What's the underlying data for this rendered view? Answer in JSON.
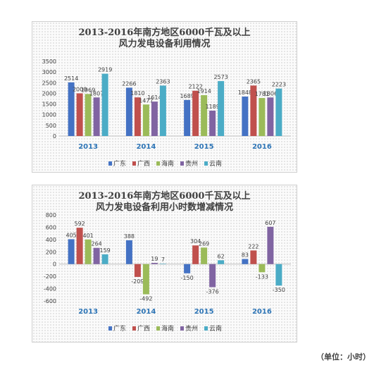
{
  "chart_data": [
    {
      "type": "bar",
      "title": "2013-2016年南方地区6000千瓦及以上",
      "subtitle": "风力发电设备利用情况",
      "categories": [
        "2013",
        "2014",
        "2015",
        "2016"
      ],
      "series": [
        {
          "name": "广东",
          "color": "#4472c4",
          "values": [
            2514,
            2266,
            1689,
            1848
          ]
        },
        {
          "name": "广西",
          "color": "#c0504d",
          "values": [
            2000,
            1810,
            2122,
            2365
          ]
        },
        {
          "name": "海南",
          "color": "#9bbb59",
          "values": [
            1969,
            1477,
            1914,
            1781
          ]
        },
        {
          "name": "贵州",
          "color": "#8064a2",
          "values": [
            1807,
            1614,
            1189,
            1806
          ]
        },
        {
          "name": "云南",
          "color": "#4bacc6",
          "values": [
            2919,
            2363,
            2573,
            2223
          ]
        }
      ],
      "ylim": [
        0,
        3500
      ],
      "yticks": [
        "0",
        "500",
        "1000",
        "1500",
        "2000",
        "2500",
        "3000",
        "3500"
      ],
      "legend": "bottom"
    },
    {
      "type": "bar",
      "title": "2013-2016年南方地区6000千瓦及以上",
      "subtitle": "风力发电设备利用小时数增减情况",
      "categories": [
        "2013",
        "2014",
        "2015",
        "2016"
      ],
      "series": [
        {
          "name": "广东",
          "color": "#4472c4",
          "values": [
            405,
            388,
            -150,
            83
          ]
        },
        {
          "name": "广西",
          "color": "#c0504d",
          "values": [
            592,
            -209,
            304,
            222
          ]
        },
        {
          "name": "海南",
          "color": "#9bbb59",
          "values": [
            401,
            -492,
            269,
            -133
          ]
        },
        {
          "name": "贵州",
          "color": "#8064a2",
          "values": [
            264,
            19,
            -376,
            607
          ]
        },
        {
          "name": "云南",
          "color": "#4bacc6",
          "values": [
            159,
            7,
            62,
            -350
          ]
        }
      ],
      "ylim": [
        -600,
        800
      ],
      "yticks": [
        "-600",
        "-400",
        "-200",
        "0",
        "200",
        "400",
        "600",
        "800"
      ],
      "legend": "bottom"
    }
  ],
  "unit_note": "（单位：小时）"
}
